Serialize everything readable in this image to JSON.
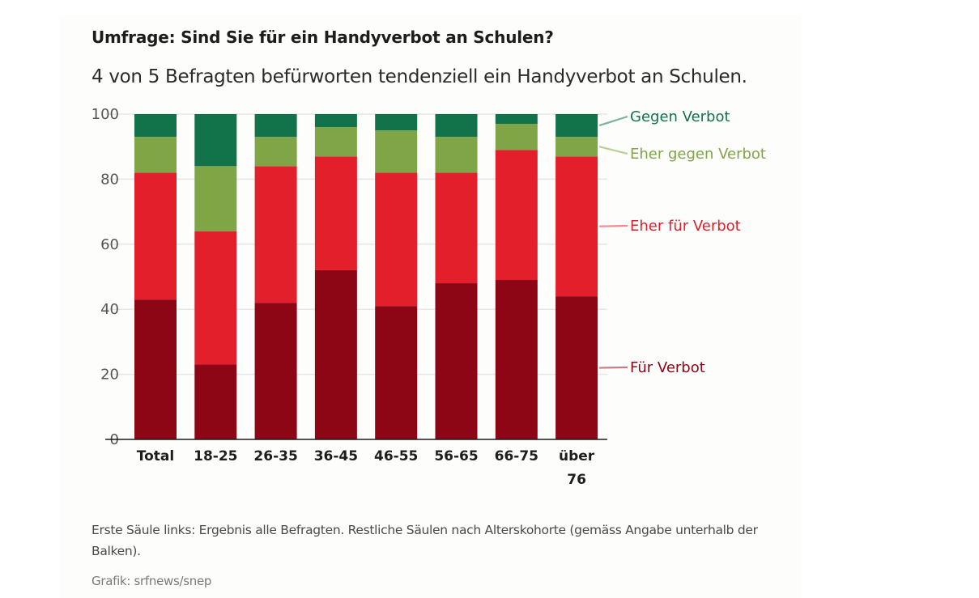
{
  "header": {
    "title": "Umfrage: Sind Sie für ein Handyverbot an Schulen?",
    "subtitle": "4 von 5 Befragten befürworten tendenziell ein Handyverbot an Schulen."
  },
  "footer": {
    "note": "Erste Säule links: Ergebnis alle Befragten. Restliche Säulen nach Alterskohorte (gemäss Angabe unterhalb der Balken).",
    "credit": "Grafik: srfnews/snep"
  },
  "chart_data": {
    "type": "bar",
    "stacked": true,
    "title": "Umfrage: Sind Sie für ein Handyverbot an Schulen?",
    "subtitle": "4 von 5 Befragten befürworten tendenziell ein Handyverbot an Schulen.",
    "xlabel": "",
    "ylabel": "",
    "ylim": [
      0,
      100
    ],
    "yticks": [
      0,
      20,
      40,
      60,
      80,
      100
    ],
    "grid": true,
    "legend_placement": "right (direct labels)",
    "categories": [
      "Total",
      "18-25",
      "26-35",
      "36-45",
      "46-55",
      "56-65",
      "66-75",
      "über 76"
    ],
    "series": [
      {
        "name": "Für Verbot",
        "color": "#8c0615",
        "values": [
          43,
          23,
          42,
          52,
          41,
          48,
          49,
          44
        ]
      },
      {
        "name": "Eher für Verbot",
        "color": "#e31f2b",
        "values": [
          39,
          41,
          42,
          35,
          41,
          34,
          40,
          43
        ]
      },
      {
        "name": "Eher gegen Verbot",
        "color": "#7fa547",
        "values": [
          11,
          20,
          9,
          9,
          13,
          11,
          8,
          6
        ]
      },
      {
        "name": "Gegen Verbot",
        "color": "#12734b",
        "values": [
          7,
          16,
          7,
          4,
          5,
          7,
          3,
          7
        ]
      }
    ],
    "legend_colors": {
      "Für Verbot": "#8c0615",
      "Eher für Verbot": "#e31f2b",
      "Eher gegen Verbot": "#7fa547",
      "Gegen Verbot": "#12734b"
    }
  }
}
